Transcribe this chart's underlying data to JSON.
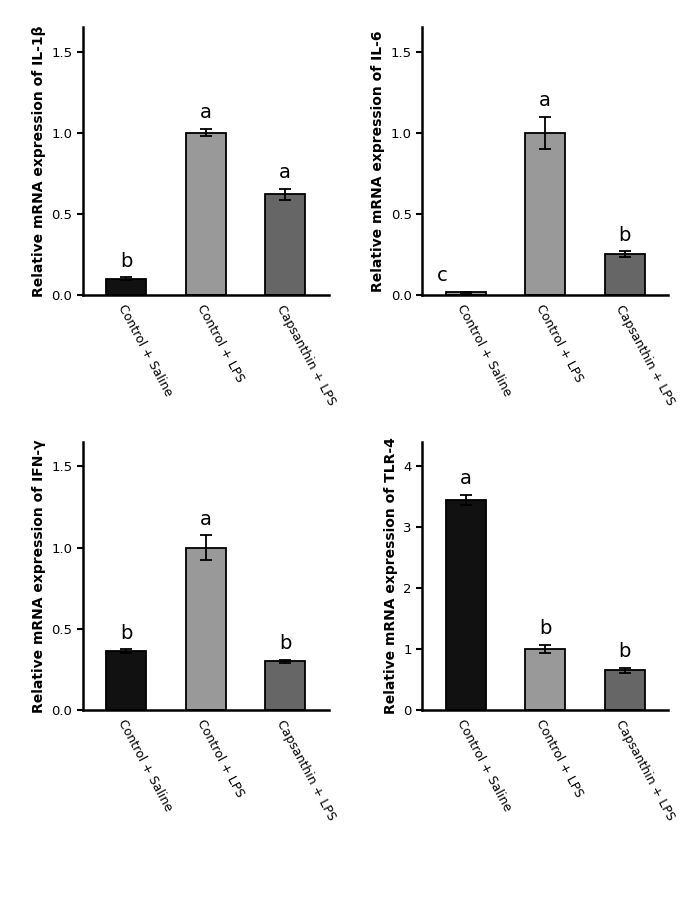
{
  "panels": [
    {
      "ylabel": "Relative mRNA expression of IL-1β",
      "categories": [
        "Control + Saline",
        "Control + LPS",
        "Capsanthin + LPS"
      ],
      "values": [
        0.1,
        1.0,
        0.62
      ],
      "errors": [
        0.008,
        0.022,
        0.032
      ],
      "colors": [
        "#111111",
        "#999999",
        "#666666"
      ],
      "letters": [
        "b",
        "a",
        "a"
      ],
      "letter_xoffsets": [
        0,
        0,
        0
      ],
      "ylim": [
        0,
        1.65
      ],
      "yticks": [
        0.0,
        0.5,
        1.0,
        1.5
      ]
    },
    {
      "ylabel": "Relative mRNA expression of IL-6",
      "categories": [
        "Control + Saline",
        "Control + LPS",
        "Capsanthin + LPS"
      ],
      "values": [
        0.018,
        1.0,
        0.25
      ],
      "errors": [
        0.003,
        0.1,
        0.018
      ],
      "colors": [
        "#999999",
        "#999999",
        "#666666"
      ],
      "letters": [
        "c",
        "a",
        "b"
      ],
      "letter_xoffsets": [
        -0.3,
        0,
        0
      ],
      "ylim": [
        0,
        1.65
      ],
      "yticks": [
        0.0,
        0.5,
        1.0,
        1.5
      ]
    },
    {
      "ylabel": "Relative mRNA expression of IFN-γ",
      "categories": [
        "Control + Saline",
        "Control + LPS",
        "Capsanthin + LPS"
      ],
      "values": [
        0.36,
        1.0,
        0.3
      ],
      "errors": [
        0.012,
        0.075,
        0.01
      ],
      "colors": [
        "#111111",
        "#999999",
        "#666666"
      ],
      "letters": [
        "b",
        "a",
        "b"
      ],
      "letter_xoffsets": [
        0,
        0,
        0
      ],
      "ylim": [
        0,
        1.65
      ],
      "yticks": [
        0.0,
        0.5,
        1.0,
        1.5
      ]
    },
    {
      "ylabel": "Relative mRNA expression of TLR-4",
      "categories": [
        "Control + Saline",
        "Control + LPS",
        "Capsanthin + LPS"
      ],
      "values": [
        3.45,
        1.0,
        0.65
      ],
      "errors": [
        0.085,
        0.065,
        0.04
      ],
      "colors": [
        "#111111",
        "#999999",
        "#666666"
      ],
      "letters": [
        "a",
        "b",
        "b"
      ],
      "letter_xoffsets": [
        0,
        0,
        0
      ],
      "ylim": [
        0,
        4.4
      ],
      "yticks": [
        0,
        1,
        2,
        3,
        4
      ]
    }
  ],
  "bar_width": 0.5,
  "edge_color": "#000000",
  "letter_fontsize": 14,
  "ylabel_fontsize": 10,
  "tick_fontsize": 9.5,
  "xtick_fontsize": 9,
  "xtick_rotation": -62
}
